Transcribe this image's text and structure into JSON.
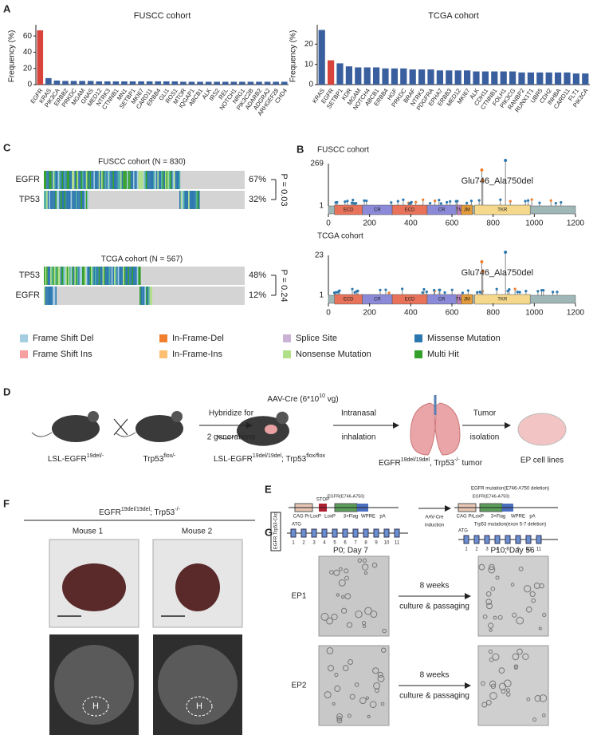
{
  "panel_labels": [
    "A",
    "B",
    "C",
    "D",
    "E",
    "F",
    "G"
  ],
  "chart_data": [
    {
      "type": "bar",
      "title": "FUSCC cohort",
      "y_label": "Frequency (%)",
      "categories": [
        "EGFR",
        "KRAS",
        "PIK3CA",
        "ERBB2",
        "PRKDC",
        "MGAM",
        "GNAS",
        "MED12",
        "NTRK3",
        "CTNNB1",
        "MN1",
        "SETBP1",
        "MKI67",
        "CARD11",
        "ERBB4",
        "GLI1",
        "ROS1",
        "MTOR",
        "IQGAP1",
        "ABCB1",
        "ALK",
        "IRS2",
        "REL",
        "NOTCH1",
        "NRG1",
        "PIK3C2B",
        "ADARB2",
        "ADGRA2",
        "ARHGEF28",
        "CHD4"
      ],
      "values": [
        67,
        8,
        5,
        4.5,
        4.5,
        4.5,
        4.5,
        4,
        4,
        4,
        4,
        4,
        4,
        4,
        4,
        4,
        4,
        3.5,
        3.5,
        3.5,
        3.5,
        3.5,
        3.5,
        3.5,
        3.5,
        3.5,
        3.5,
        3.5,
        3.5,
        3.5
      ],
      "highlight": "EGFR",
      "color": "#3a5f9e",
      "highlight_color": "#d8433b",
      "ylim": [
        0,
        70
      ],
      "yticks": [
        0,
        20,
        40,
        60
      ]
    },
    {
      "type": "bar",
      "title": "TCGA cohort",
      "y_label": "Frequency (%)",
      "categories": [
        "KRAS",
        "EGFR",
        "SETBP1",
        "KDR",
        "MGAM",
        "NOTCH4",
        "ABCB1",
        "ERBB4",
        "HGF",
        "PRKDC",
        "BRAF",
        "NTRK3",
        "PDGFRA",
        "EPHA7",
        "ERBB3",
        "MED12",
        "MKI67",
        "ALK",
        "CDH11",
        "CTNNB1",
        "FOLH1",
        "PIK3CG",
        "RANBP2",
        "RUNX1T1",
        "UBR5",
        "CDH2",
        "INHBA",
        "CARD11",
        "FLT1",
        "PIK3CA"
      ],
      "values": [
        27,
        12,
        10.5,
        9,
        8.5,
        8.5,
        8.5,
        8,
        8,
        8,
        7.5,
        7.5,
        7.5,
        7,
        7,
        7,
        7,
        6.5,
        6.5,
        6.5,
        6.5,
        6.5,
        6,
        6,
        6,
        6,
        6,
        6,
        5.5,
        5.5
      ],
      "highlight": "EGFR",
      "color": "#3a5f9e",
      "highlight_color": "#d8433b",
      "ylim": [
        0,
        28
      ],
      "yticks": [
        0,
        10,
        20
      ]
    }
  ],
  "panel_c": [
    {
      "title": "FUSCC cohort (N = 830)",
      "rows": [
        {
          "gene": "EGFR",
          "percent": "67%"
        },
        {
          "gene": "TP53",
          "percent": "32%"
        }
      ],
      "p": "P = 0.03"
    },
    {
      "title": "TCGA cohort (N = 567)",
      "rows": [
        {
          "gene": "TP53",
          "percent": "48%"
        },
        {
          "gene": "EGFR",
          "percent": "12%"
        }
      ],
      "p": "P = 0.24"
    }
  ],
  "legend": [
    {
      "name": "Frame Shift Del",
      "color": "#a6cee3"
    },
    {
      "name": "In-Frame-Del",
      "color": "#f07f2e"
    },
    {
      "name": "Splice Site",
      "color": "#c9b2d6"
    },
    {
      "name": "Missense Mutation",
      "color": "#2b78b0"
    },
    {
      "name": "Frame Shift Ins",
      "color": "#f4a0a0"
    },
    {
      "name": "In-Frame-Ins",
      "color": "#fdbf6f"
    },
    {
      "name": "Nonsense Mutation",
      "color": "#b2df8a"
    },
    {
      "name": "Multi Hit",
      "color": "#33a02c"
    }
  ],
  "panel_b": {
    "plots": [
      {
        "title": "FUSCC cohort",
        "ymax": "269",
        "ymin": "1",
        "annotation": "Glu746_Ala750del"
      },
      {
        "title": "TCGA cohort",
        "ymax": "23",
        "ymin": "1",
        "annotation": "Glu746_Ala750del"
      }
    ],
    "xticks": [
      0,
      200,
      400,
      600,
      800,
      1000,
      1200
    ],
    "domains": [
      "ECD",
      "CR",
      "ECD",
      "CR",
      "TM",
      "JM",
      "TKR"
    ]
  },
  "panel_d": {
    "mouse1": [
      {
        "t": "LSL-EGFR"
      },
      {
        "sup": "19del/-"
      }
    ],
    "mouse2": [
      {
        "t": "Trp53"
      },
      {
        "sup": "flox/-"
      }
    ],
    "step1": [
      "Hybridize for",
      "2 generations"
    ],
    "virus": [
      {
        "t": "AAV-Cre (6*10"
      },
      {
        "sup": "10"
      },
      {
        "t": " vg)"
      }
    ],
    "mouse3": [
      {
        "t": "LSL-EGFR"
      },
      {
        "sup": "19del/19del"
      },
      {
        "t": "; Trp53"
      },
      {
        "sup": "flox/flox"
      }
    ],
    "step2": [
      "Intranasal",
      "inhalation"
    ],
    "tumor": [
      {
        "t": "EGFR"
      },
      {
        "sup": "19del/19del"
      },
      {
        "t": ", Trp53"
      },
      {
        "sup": "-/-"
      },
      {
        "t": " tumor"
      }
    ],
    "step3": [
      "Tumor",
      "isolation"
    ],
    "cells": "EP cell lines"
  },
  "panel_e": {
    "side": "EGFR Trp53-Cko",
    "stop": "STOP",
    "egfr": "EGFR(E746-A750)",
    "cag": "CAG Pr",
    "loxp": "LoxP",
    "flag": "3×Flag",
    "wpre": "WPRE",
    "pa": "pA",
    "atg": "ATG",
    "exons_before": [
      "1",
      "2",
      "3",
      "4",
      "5",
      "6",
      "7",
      "8",
      "9",
      "10",
      "11"
    ],
    "exons_after": [
      "1",
      "2",
      "3",
      "4",
      "8",
      "9",
      "10",
      "11"
    ],
    "cre": [
      "AAV-Cre",
      "induction"
    ],
    "result1": "EGFR mutation(E746-A750 deletion)",
    "result2": "Trp53 mutation(exon 5-7 deletion)"
  },
  "panel_f": {
    "title": [
      {
        "t": "EGFR"
      },
      {
        "sup": "19del/19del"
      },
      {
        "t": "; Trp53"
      },
      {
        "sup": "-/-"
      }
    ],
    "mice": [
      "Mouse 1",
      "Mouse 2"
    ],
    "heart": "H"
  },
  "panel_g": {
    "times": [
      "P0; Day 7",
      "P10; Day 56"
    ],
    "lines": [
      "EP1",
      "EP2"
    ],
    "arrow": [
      "8 weeks",
      "culture & passaging"
    ]
  }
}
